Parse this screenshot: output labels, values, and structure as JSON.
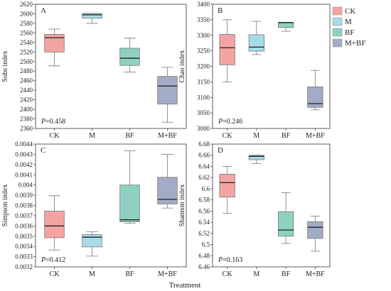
{
  "figure": {
    "xlabel": "Treatment",
    "categories": [
      "CK",
      "M",
      "BF",
      "M+BF"
    ],
    "colors": [
      "#f4a3a3",
      "#a8dbe8",
      "#8fd1c0",
      "#a3acc6"
    ],
    "legend": [
      "CK",
      "M",
      "BF",
      "M+BF"
    ]
  },
  "chart_data": [
    {
      "type": "box",
      "panel": "A",
      "ylabel": "Sobs index",
      "pvalue": "P=0.458",
      "ylim": [
        2360,
        2620
      ],
      "yticks": [
        2360,
        2380,
        2400,
        2420,
        2440,
        2460,
        2480,
        2500,
        2520,
        2540,
        2560,
        2580,
        2600,
        2620
      ],
      "categories": [
        "CK",
        "M",
        "BF",
        "M+BF"
      ],
      "boxes": [
        {
          "min": 2491,
          "q1": 2520,
          "median": 2550,
          "q3": 2557,
          "max": 2568
        },
        {
          "min": 2580,
          "q1": 2591,
          "median": 2598,
          "q3": 2601,
          "max": 2601
        },
        {
          "min": 2478,
          "q1": 2492,
          "median": 2507,
          "q3": 2528,
          "max": 2549
        },
        {
          "min": 2373,
          "q1": 2411,
          "median": 2449,
          "q3": 2469,
          "max": 2488
        }
      ]
    },
    {
      "type": "box",
      "panel": "B",
      "ylabel": "Chao index",
      "pvalue": "P=0.246",
      "ylim": [
        3000,
        3400
      ],
      "yticks": [
        3000,
        3050,
        3100,
        3150,
        3200,
        3250,
        3300,
        3350,
        3400
      ],
      "categories": [
        "CK",
        "M",
        "BF",
        "M+BF"
      ],
      "boxes": [
        {
          "min": 3150,
          "q1": 3205,
          "median": 3260,
          "q3": 3303,
          "max": 3350
        },
        {
          "min": 3238,
          "q1": 3249,
          "median": 3262,
          "q3": 3302,
          "max": 3345
        },
        {
          "min": 3313,
          "q1": 3325,
          "median": 3341,
          "q3": 3342,
          "max": 3342
        },
        {
          "min": 3060,
          "q1": 3068,
          "median": 3080,
          "q3": 3134,
          "max": 3187
        }
      ]
    },
    {
      "type": "box",
      "panel": "C",
      "ylabel": "Simpson index",
      "pvalue": "P=0.412",
      "ylim": [
        0.0032,
        0.0044
      ],
      "yticks": [
        0.0032,
        0.0033,
        0.0034,
        0.0035,
        0.0036,
        0.0037,
        0.0038,
        0.0039,
        0.004,
        0.0041,
        0.0042,
        0.0043,
        0.0044
      ],
      "categories": [
        "CK",
        "M",
        "BF",
        "M+BF"
      ],
      "boxes": [
        {
          "min": 0.003365,
          "q1": 0.003485,
          "median": 0.0036,
          "q3": 0.003745,
          "max": 0.003895
        },
        {
          "min": 0.003305,
          "q1": 0.003395,
          "median": 0.00349,
          "q3": 0.003515,
          "max": 0.003545
        },
        {
          "min": 0.003625,
          "q1": 0.00364,
          "median": 0.00366,
          "q3": 0.004,
          "max": 0.004335
        },
        {
          "min": 0.003775,
          "q1": 0.003815,
          "median": 0.00386,
          "q3": 0.004075,
          "max": 0.0043
        }
      ]
    },
    {
      "type": "box",
      "panel": "D",
      "ylabel": "Shannon index",
      "pvalue": "P=0.163",
      "ylim": [
        6.46,
        6.68
      ],
      "yticks": [
        6.46,
        6.48,
        6.5,
        6.52,
        6.54,
        6.56,
        6.58,
        6.6,
        6.62,
        6.64,
        6.66,
        6.68
      ],
      "categories": [
        "CK",
        "M",
        "BF",
        "M+BF"
      ],
      "boxes": [
        {
          "min": 6.556,
          "q1": 6.585,
          "median": 6.611,
          "q3": 6.626,
          "max": 6.64
        },
        {
          "min": 6.645,
          "q1": 6.652,
          "median": 6.658,
          "q3": 6.66,
          "max": 6.66
        },
        {
          "min": 6.502,
          "q1": 6.515,
          "median": 6.526,
          "q3": 6.559,
          "max": 6.593
        },
        {
          "min": 6.488,
          "q1": 6.511,
          "median": 6.531,
          "q3": 6.541,
          "max": 6.551
        }
      ]
    }
  ]
}
